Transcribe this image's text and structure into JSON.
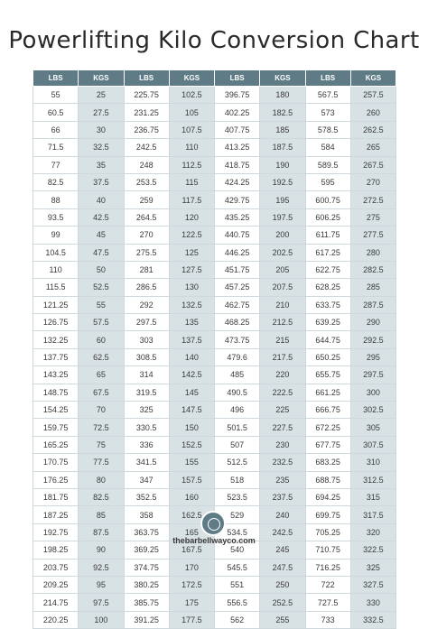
{
  "title": "Powerlifting Kilo Conversion Chart",
  "headers": [
    "LBS",
    "KGS",
    "LBS",
    "KGS",
    "LBS",
    "KGS",
    "LBS",
    "KGS"
  ],
  "rows": [
    [
      "55",
      "25",
      "225.75",
      "102.5",
      "396.75",
      "180",
      "567.5",
      "257.5"
    ],
    [
      "60.5",
      "27.5",
      "231.25",
      "105",
      "402.25",
      "182.5",
      "573",
      "260"
    ],
    [
      "66",
      "30",
      "236.75",
      "107.5",
      "407.75",
      "185",
      "578.5",
      "262.5"
    ],
    [
      "71.5",
      "32.5",
      "242.5",
      "110",
      "413.25",
      "187.5",
      "584",
      "265"
    ],
    [
      "77",
      "35",
      "248",
      "112.5",
      "418.75",
      "190",
      "589.5",
      "267.5"
    ],
    [
      "82.5",
      "37.5",
      "253.5",
      "115",
      "424.25",
      "192.5",
      "595",
      "270"
    ],
    [
      "88",
      "40",
      "259",
      "117.5",
      "429.75",
      "195",
      "600.75",
      "272.5"
    ],
    [
      "93.5",
      "42.5",
      "264.5",
      "120",
      "435.25",
      "197.5",
      "606.25",
      "275"
    ],
    [
      "99",
      "45",
      "270",
      "122.5",
      "440.75",
      "200",
      "611.75",
      "277.5"
    ],
    [
      "104.5",
      "47.5",
      "275.5",
      "125",
      "446.25",
      "202.5",
      "617.25",
      "280"
    ],
    [
      "110",
      "50",
      "281",
      "127.5",
      "451.75",
      "205",
      "622.75",
      "282.5"
    ],
    [
      "115.5",
      "52.5",
      "286.5",
      "130",
      "457.25",
      "207.5",
      "628.25",
      "285"
    ],
    [
      "121.25",
      "55",
      "292",
      "132.5",
      "462.75",
      "210",
      "633.75",
      "287.5"
    ],
    [
      "126.75",
      "57.5",
      "297.5",
      "135",
      "468.25",
      "212.5",
      "639.25",
      "290"
    ],
    [
      "132.25",
      "60",
      "303",
      "137.5",
      "473.75",
      "215",
      "644.75",
      "292.5"
    ],
    [
      "137.75",
      "62.5",
      "308.5",
      "140",
      "479.6",
      "217.5",
      "650.25",
      "295"
    ],
    [
      "143.25",
      "65",
      "314",
      "142.5",
      "485",
      "220",
      "655.75",
      "297.5"
    ],
    [
      "148.75",
      "67.5",
      "319.5",
      "145",
      "490.5",
      "222.5",
      "661.25",
      "300"
    ],
    [
      "154.25",
      "70",
      "325",
      "147.5",
      "496",
      "225",
      "666.75",
      "302.5"
    ],
    [
      "159.75",
      "72.5",
      "330.5",
      "150",
      "501.5",
      "227.5",
      "672.25",
      "305"
    ],
    [
      "165.25",
      "75",
      "336",
      "152.5",
      "507",
      "230",
      "677.75",
      "307.5"
    ],
    [
      "170.75",
      "77.5",
      "341.5",
      "155",
      "512.5",
      "232.5",
      "683.25",
      "310"
    ],
    [
      "176.25",
      "80",
      "347",
      "157.5",
      "518",
      "235",
      "688.75",
      "312.5"
    ],
    [
      "181.75",
      "82.5",
      "352.5",
      "160",
      "523.5",
      "237.5",
      "694.25",
      "315"
    ],
    [
      "187.25",
      "85",
      "358",
      "162.5",
      "529",
      "240",
      "699.75",
      "317.5"
    ],
    [
      "192.75",
      "87.5",
      "363.75",
      "165",
      "534.5",
      "242.5",
      "705.25",
      "320"
    ],
    [
      "198.25",
      "90",
      "369.25",
      "167.5",
      "540",
      "245",
      "710.75",
      "322.5"
    ],
    [
      "203.75",
      "92.5",
      "374.75",
      "170",
      "545.5",
      "247.5",
      "716.25",
      "325"
    ],
    [
      "209.25",
      "95",
      "380.25",
      "172.5",
      "551",
      "250",
      "722",
      "327.5"
    ],
    [
      "214.75",
      "97.5",
      "385.75",
      "175",
      "556.5",
      "252.5",
      "727.5",
      "330"
    ],
    [
      "220.25",
      "100",
      "391.25",
      "177.5",
      "562",
      "255",
      "733",
      "332.5"
    ]
  ],
  "footer": {
    "site": "thebarbellwayco.com"
  },
  "colors": {
    "header_bg": "#5f7b86",
    "kgs_col_bg": "#d8e1e4",
    "logo_bg": "#5f7b86"
  },
  "logo_icon": "barbell-logo-icon"
}
